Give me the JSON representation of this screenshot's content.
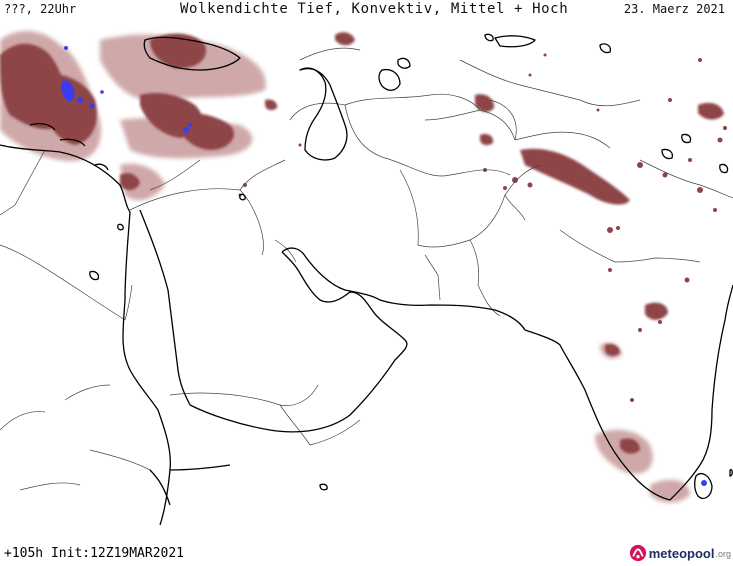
{
  "header": {
    "left": "???, 22Uhr",
    "title": "Wolkendichte  Tief, Konvektiv, Mittel + Hoch",
    "right": "23. Maerz 2021"
  },
  "footer": {
    "run_info": "+105h Init:12Z19MAR2021"
  },
  "brand": {
    "name": "meteopool",
    "tld": ".org",
    "icon": "meteopool-logo-icon"
  },
  "colors": {
    "cloud_dense": "#8e4447",
    "cloud_light": "#c79a9b",
    "cloud_peak": "#3a3cf2",
    "coastline": "#000000",
    "borders": "#444444"
  }
}
